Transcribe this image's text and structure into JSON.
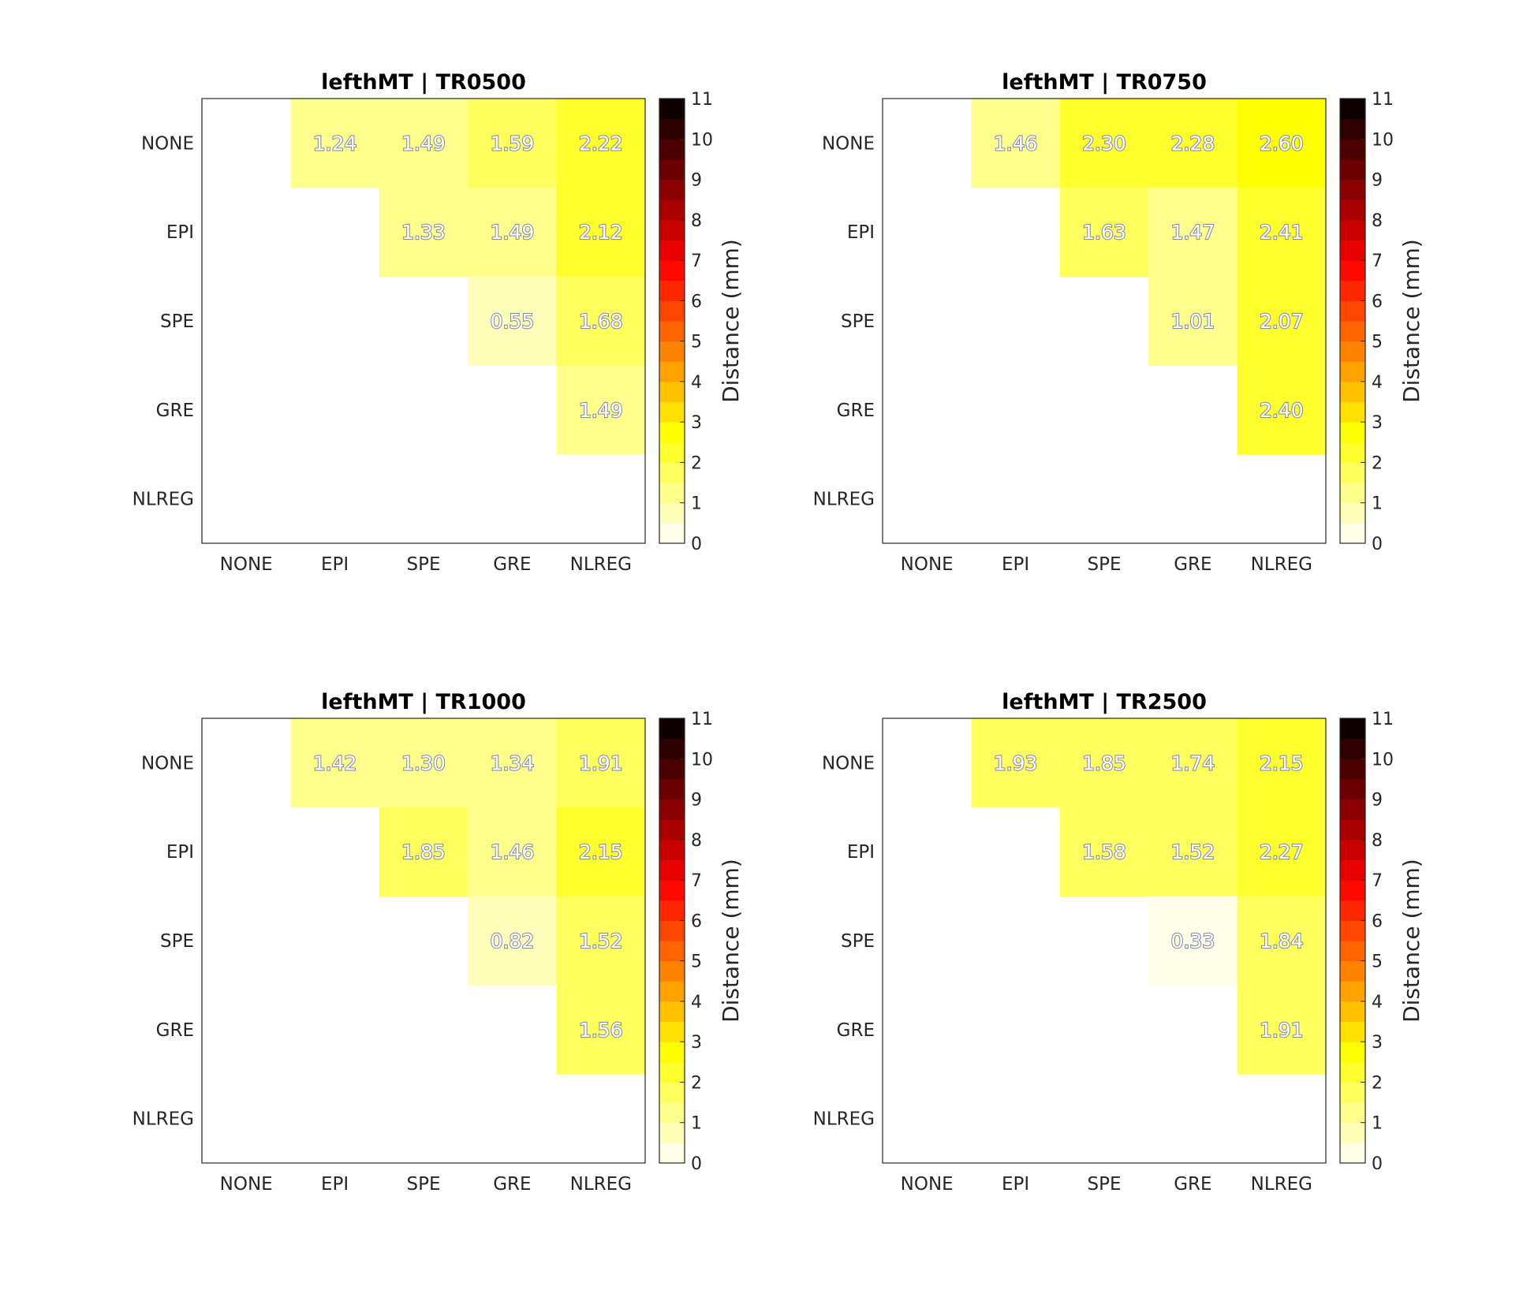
{
  "chart_data": [
    {
      "type": "heatmap",
      "title": "lefthMT | TR0500",
      "categories": [
        "NONE",
        "EPI",
        "SPE",
        "GRE",
        "NLREG"
      ],
      "values": [
        [
          null,
          1.24,
          1.49,
          1.59,
          2.22
        ],
        [
          null,
          null,
          1.33,
          1.49,
          2.12
        ],
        [
          null,
          null,
          null,
          0.55,
          1.68
        ],
        [
          null,
          null,
          null,
          null,
          1.49
        ],
        [
          null,
          null,
          null,
          null,
          null
        ]
      ],
      "colorbar": {
        "label": "Distance (mm)",
        "range": [
          0,
          11
        ],
        "ticks": [
          0,
          1,
          2,
          3,
          4,
          5,
          6,
          7,
          8,
          9,
          10,
          11
        ],
        "colormap": "hot (reversed, 22 levels)"
      }
    },
    {
      "type": "heatmap",
      "title": "lefthMT | TR0750",
      "categories": [
        "NONE",
        "EPI",
        "SPE",
        "GRE",
        "NLREG"
      ],
      "values": [
        [
          null,
          1.46,
          2.3,
          2.28,
          2.6
        ],
        [
          null,
          null,
          1.63,
          1.47,
          2.41
        ],
        [
          null,
          null,
          null,
          1.01,
          2.07
        ],
        [
          null,
          null,
          null,
          null,
          2.4
        ],
        [
          null,
          null,
          null,
          null,
          null
        ]
      ],
      "colorbar": {
        "label": "Distance (mm)",
        "range": [
          0,
          11
        ],
        "ticks": [
          0,
          1,
          2,
          3,
          4,
          5,
          6,
          7,
          8,
          9,
          10,
          11
        ],
        "colormap": "hot (reversed, 22 levels)"
      }
    },
    {
      "type": "heatmap",
      "title": "lefthMT | TR1000",
      "categories": [
        "NONE",
        "EPI",
        "SPE",
        "GRE",
        "NLREG"
      ],
      "values": [
        [
          null,
          1.42,
          1.3,
          1.34,
          1.91
        ],
        [
          null,
          null,
          1.85,
          1.46,
          2.15
        ],
        [
          null,
          null,
          null,
          0.82,
          1.52
        ],
        [
          null,
          null,
          null,
          null,
          1.56
        ],
        [
          null,
          null,
          null,
          null,
          null
        ]
      ],
      "colorbar": {
        "label": "Distance (mm)",
        "range": [
          0,
          11
        ],
        "ticks": [
          0,
          1,
          2,
          3,
          4,
          5,
          6,
          7,
          8,
          9,
          10,
          11
        ],
        "colormap": "hot (reversed, 22 levels)"
      }
    },
    {
      "type": "heatmap",
      "title": "lefthMT | TR2500",
      "categories": [
        "NONE",
        "EPI",
        "SPE",
        "GRE",
        "NLREG"
      ],
      "values": [
        [
          null,
          1.93,
          1.85,
          1.74,
          2.15
        ],
        [
          null,
          null,
          1.58,
          1.52,
          2.27
        ],
        [
          null,
          null,
          null,
          0.33,
          1.84
        ],
        [
          null,
          null,
          null,
          null,
          1.91
        ],
        [
          null,
          null,
          null,
          null,
          null
        ]
      ],
      "colorbar": {
        "label": "Distance (mm)",
        "range": [
          0,
          11
        ],
        "ticks": [
          0,
          1,
          2,
          3,
          4,
          5,
          6,
          7,
          8,
          9,
          10,
          11
        ],
        "colormap": "hot (reversed, 22 levels)"
      }
    }
  ]
}
